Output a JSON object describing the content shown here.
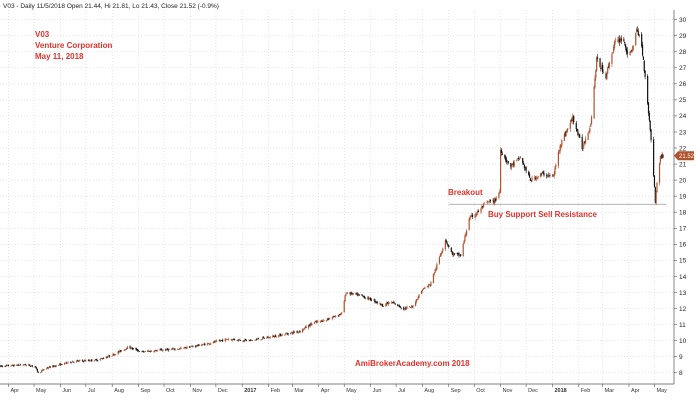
{
  "header_text": "V03 - Daily 11/5/2018 Open 21.44, Hi 21.81, Lo 21.43, Close 21.52 (-0.9%)",
  "chart_data": {
    "type": "candlestick",
    "ticker": "V03",
    "company": "Venture Corporation",
    "date_label": "May 11, 2018",
    "y_ticks": [
      8,
      9,
      10,
      11,
      12,
      13,
      14,
      15,
      16,
      17,
      18,
      19,
      20,
      21,
      22,
      23,
      24,
      25,
      26,
      27,
      28,
      29,
      30
    ],
    "ylim": [
      7.3,
      30.6
    ],
    "x_ticks": [
      "Apr",
      "May",
      "Jun",
      "Jul",
      "Aug",
      "Sep",
      "Oct",
      "Nov",
      "Dec",
      "2017",
      "Feb",
      "Mar",
      "Apr",
      "May",
      "Jun",
      "Jul",
      "Aug",
      "Sep",
      "Oct",
      "Nov",
      "Dec",
      "2018",
      "Feb",
      "Mar",
      "Apr",
      "May"
    ],
    "x_ticks_start": "2016-04-01",
    "x_tick_interval_months": 1,
    "last_close": 21.52,
    "last_close_label": "21.52",
    "price_path": [
      [
        "2016-03-22",
        8.4
      ],
      [
        "2016-04-20",
        8.5
      ],
      [
        "2016-05-02",
        8.4
      ],
      [
        "2016-05-06",
        8.0
      ],
      [
        "2016-05-16",
        8.3
      ],
      [
        "2016-06-15",
        8.7
      ],
      [
        "2016-07-15",
        8.8
      ],
      [
        "2016-08-01",
        9.1
      ],
      [
        "2016-08-20",
        9.6
      ],
      [
        "2016-09-05",
        9.3
      ],
      [
        "2016-09-25",
        9.4
      ],
      [
        "2016-10-20",
        9.5
      ],
      [
        "2016-11-20",
        9.8
      ],
      [
        "2016-12-15",
        10.1
      ],
      [
        "2017-01-10",
        10.0
      ],
      [
        "2017-02-10",
        10.3
      ],
      [
        "2017-03-10",
        10.6
      ],
      [
        "2017-03-25",
        11.1
      ],
      [
        "2017-04-10",
        11.3
      ],
      [
        "2017-04-28",
        11.7
      ],
      [
        "2017-05-03",
        13.0
      ],
      [
        "2017-05-20",
        12.8
      ],
      [
        "2017-06-05",
        12.5
      ],
      [
        "2017-06-15",
        12.2
      ],
      [
        "2017-06-25",
        12.4
      ],
      [
        "2017-07-10",
        12.0
      ],
      [
        "2017-07-20",
        12.1
      ],
      [
        "2017-08-01",
        13.2
      ],
      [
        "2017-08-10",
        13.5
      ],
      [
        "2017-08-20",
        15.0
      ],
      [
        "2017-08-28",
        16.3
      ],
      [
        "2017-09-05",
        15.4
      ],
      [
        "2017-09-15",
        15.3
      ],
      [
        "2017-09-25",
        17.6
      ],
      [
        "2017-10-05",
        18.0
      ],
      [
        "2017-10-15",
        18.6
      ],
      [
        "2017-10-25",
        18.7
      ],
      [
        "2017-10-31",
        19.3
      ],
      [
        "2017-11-01",
        21.9
      ],
      [
        "2017-11-12",
        20.8
      ],
      [
        "2017-11-24",
        21.4
      ],
      [
        "2017-12-06",
        20.0
      ],
      [
        "2017-12-20",
        20.4
      ],
      [
        "2018-01-02",
        20.2
      ],
      [
        "2018-01-10",
        22.2
      ],
      [
        "2018-01-25",
        23.9
      ],
      [
        "2018-02-05",
        22.0
      ],
      [
        "2018-02-15",
        23.5
      ],
      [
        "2018-02-22",
        27.5
      ],
      [
        "2018-03-05",
        26.5
      ],
      [
        "2018-03-15",
        28.5
      ],
      [
        "2018-03-25",
        28.9
      ],
      [
        "2018-04-01",
        27.5
      ],
      [
        "2018-04-10",
        29.3
      ],
      [
        "2018-04-15",
        28.8
      ],
      [
        "2018-04-20",
        26.5
      ],
      [
        "2018-04-28",
        22.0
      ],
      [
        "2018-05-02",
        18.7
      ],
      [
        "2018-05-05",
        20.3
      ],
      [
        "2018-05-08",
        21.5
      ],
      [
        "2018-05-11",
        21.52
      ]
    ],
    "support_line": {
      "value": 18.5,
      "x_start": "2017-09-01",
      "x_end": "2018-05-15"
    }
  },
  "annotations": {
    "breakout": "Breakout",
    "support_resistance": "Buy Support Sell Resistance",
    "watermark": "AmiBrokerAcademy.com  2018"
  },
  "colors": {
    "candle_up": "#b2522d",
    "candle_down": "#111111",
    "grid": "#cccccc",
    "annotation_red": "#e0322c",
    "support_line": "#999999",
    "price_tag": "#b2522d"
  }
}
